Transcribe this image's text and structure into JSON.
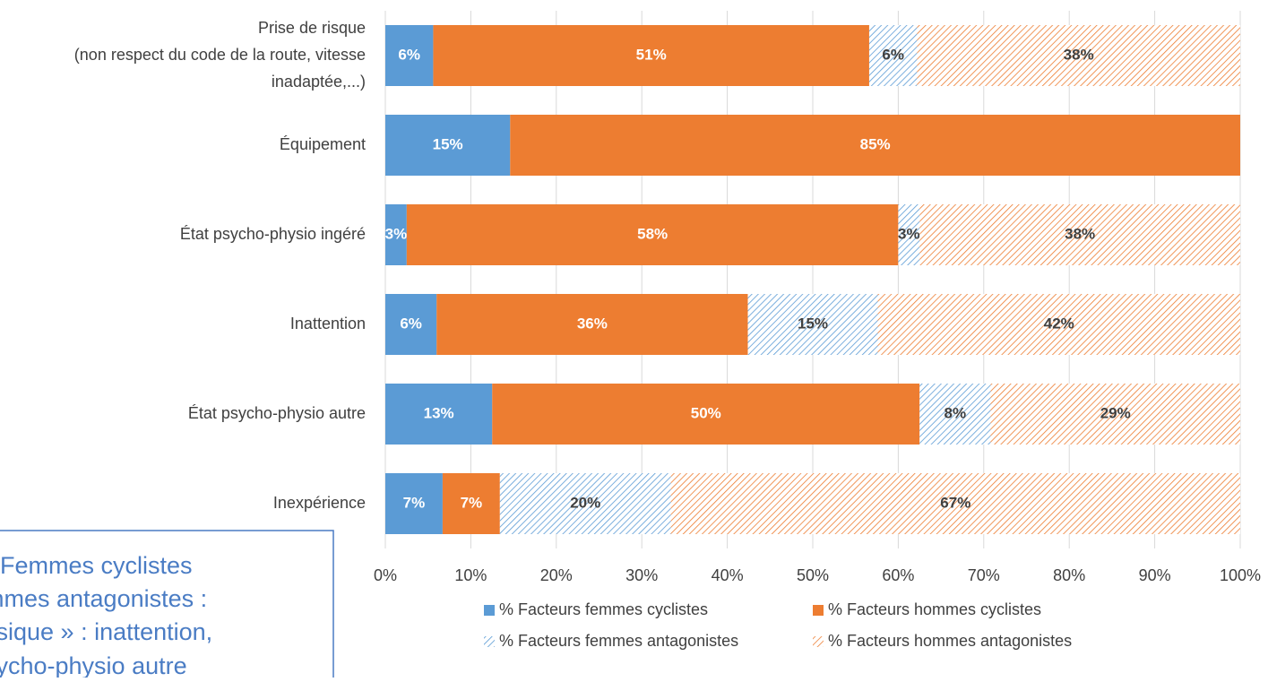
{
  "chart_data": {
    "type": "stacked_barh",
    "categories": [
      "Prise de risque\n(non respect du code de la route, vitesse\ninadaptée,...)",
      "Équipement",
      "État psycho-physio ingéré",
      "Inattention",
      "État psycho-physio autre",
      "Inexpérience"
    ],
    "series": [
      {
        "name": "% Facteurs femmes cyclistes",
        "color": "#5b9bd5",
        "pattern": "solid",
        "values": [
          5.6,
          14.6,
          2.5,
          6,
          12.5,
          6.7
        ],
        "value_labels": [
          "6%",
          "15%",
          "3%",
          "6%",
          "13%",
          "7%"
        ]
      },
      {
        "name": "% Facteurs hommes cyclistes",
        "color": "#ed7d31",
        "pattern": "solid",
        "values": [
          51,
          85.4,
          57.5,
          36.4,
          50,
          6.7
        ],
        "value_labels": [
          "51%",
          "85%",
          "58%",
          "36%",
          "50%",
          "7%"
        ]
      },
      {
        "name": "% Facteurs femmes antagonistes",
        "color": "#5b9bd5",
        "pattern": "hatch",
        "values": [
          5.6,
          null,
          2.5,
          15.2,
          8.3,
          20
        ],
        "value_labels": [
          "6%",
          null,
          "3%",
          "15%",
          "8%",
          "20%"
        ]
      },
      {
        "name": "% Facteurs hommes antagonistes",
        "color": "#ed7d31",
        "pattern": "hatch",
        "values": [
          37.8,
          null,
          37.5,
          42.4,
          29.2,
          66.6
        ],
        "value_labels": [
          "38%",
          null,
          "38%",
          "42%",
          "29%",
          "67%"
        ]
      }
    ],
    "xlim": [
      0,
      100
    ],
    "xticks": [
      {
        "value": 0,
        "label": "0%"
      },
      {
        "value": 10,
        "label": "10%"
      },
      {
        "value": 20,
        "label": "20%"
      },
      {
        "value": 30,
        "label": "30%"
      },
      {
        "value": 40,
        "label": "40%"
      },
      {
        "value": 50,
        "label": "50%"
      },
      {
        "value": 60,
        "label": "60%"
      },
      {
        "value": 70,
        "label": "70%"
      },
      {
        "value": 80,
        "label": "80%"
      },
      {
        "value": 90,
        "label": "90%"
      },
      {
        "value": 100,
        "label": "100%"
      }
    ],
    "grid": true,
    "legend": "bottom",
    "annotation": [
      "Femmes  cyclistes",
      "mmes antagonistes :",
      "ysique » : inattention,",
      "sycho-physio autre"
    ]
  }
}
